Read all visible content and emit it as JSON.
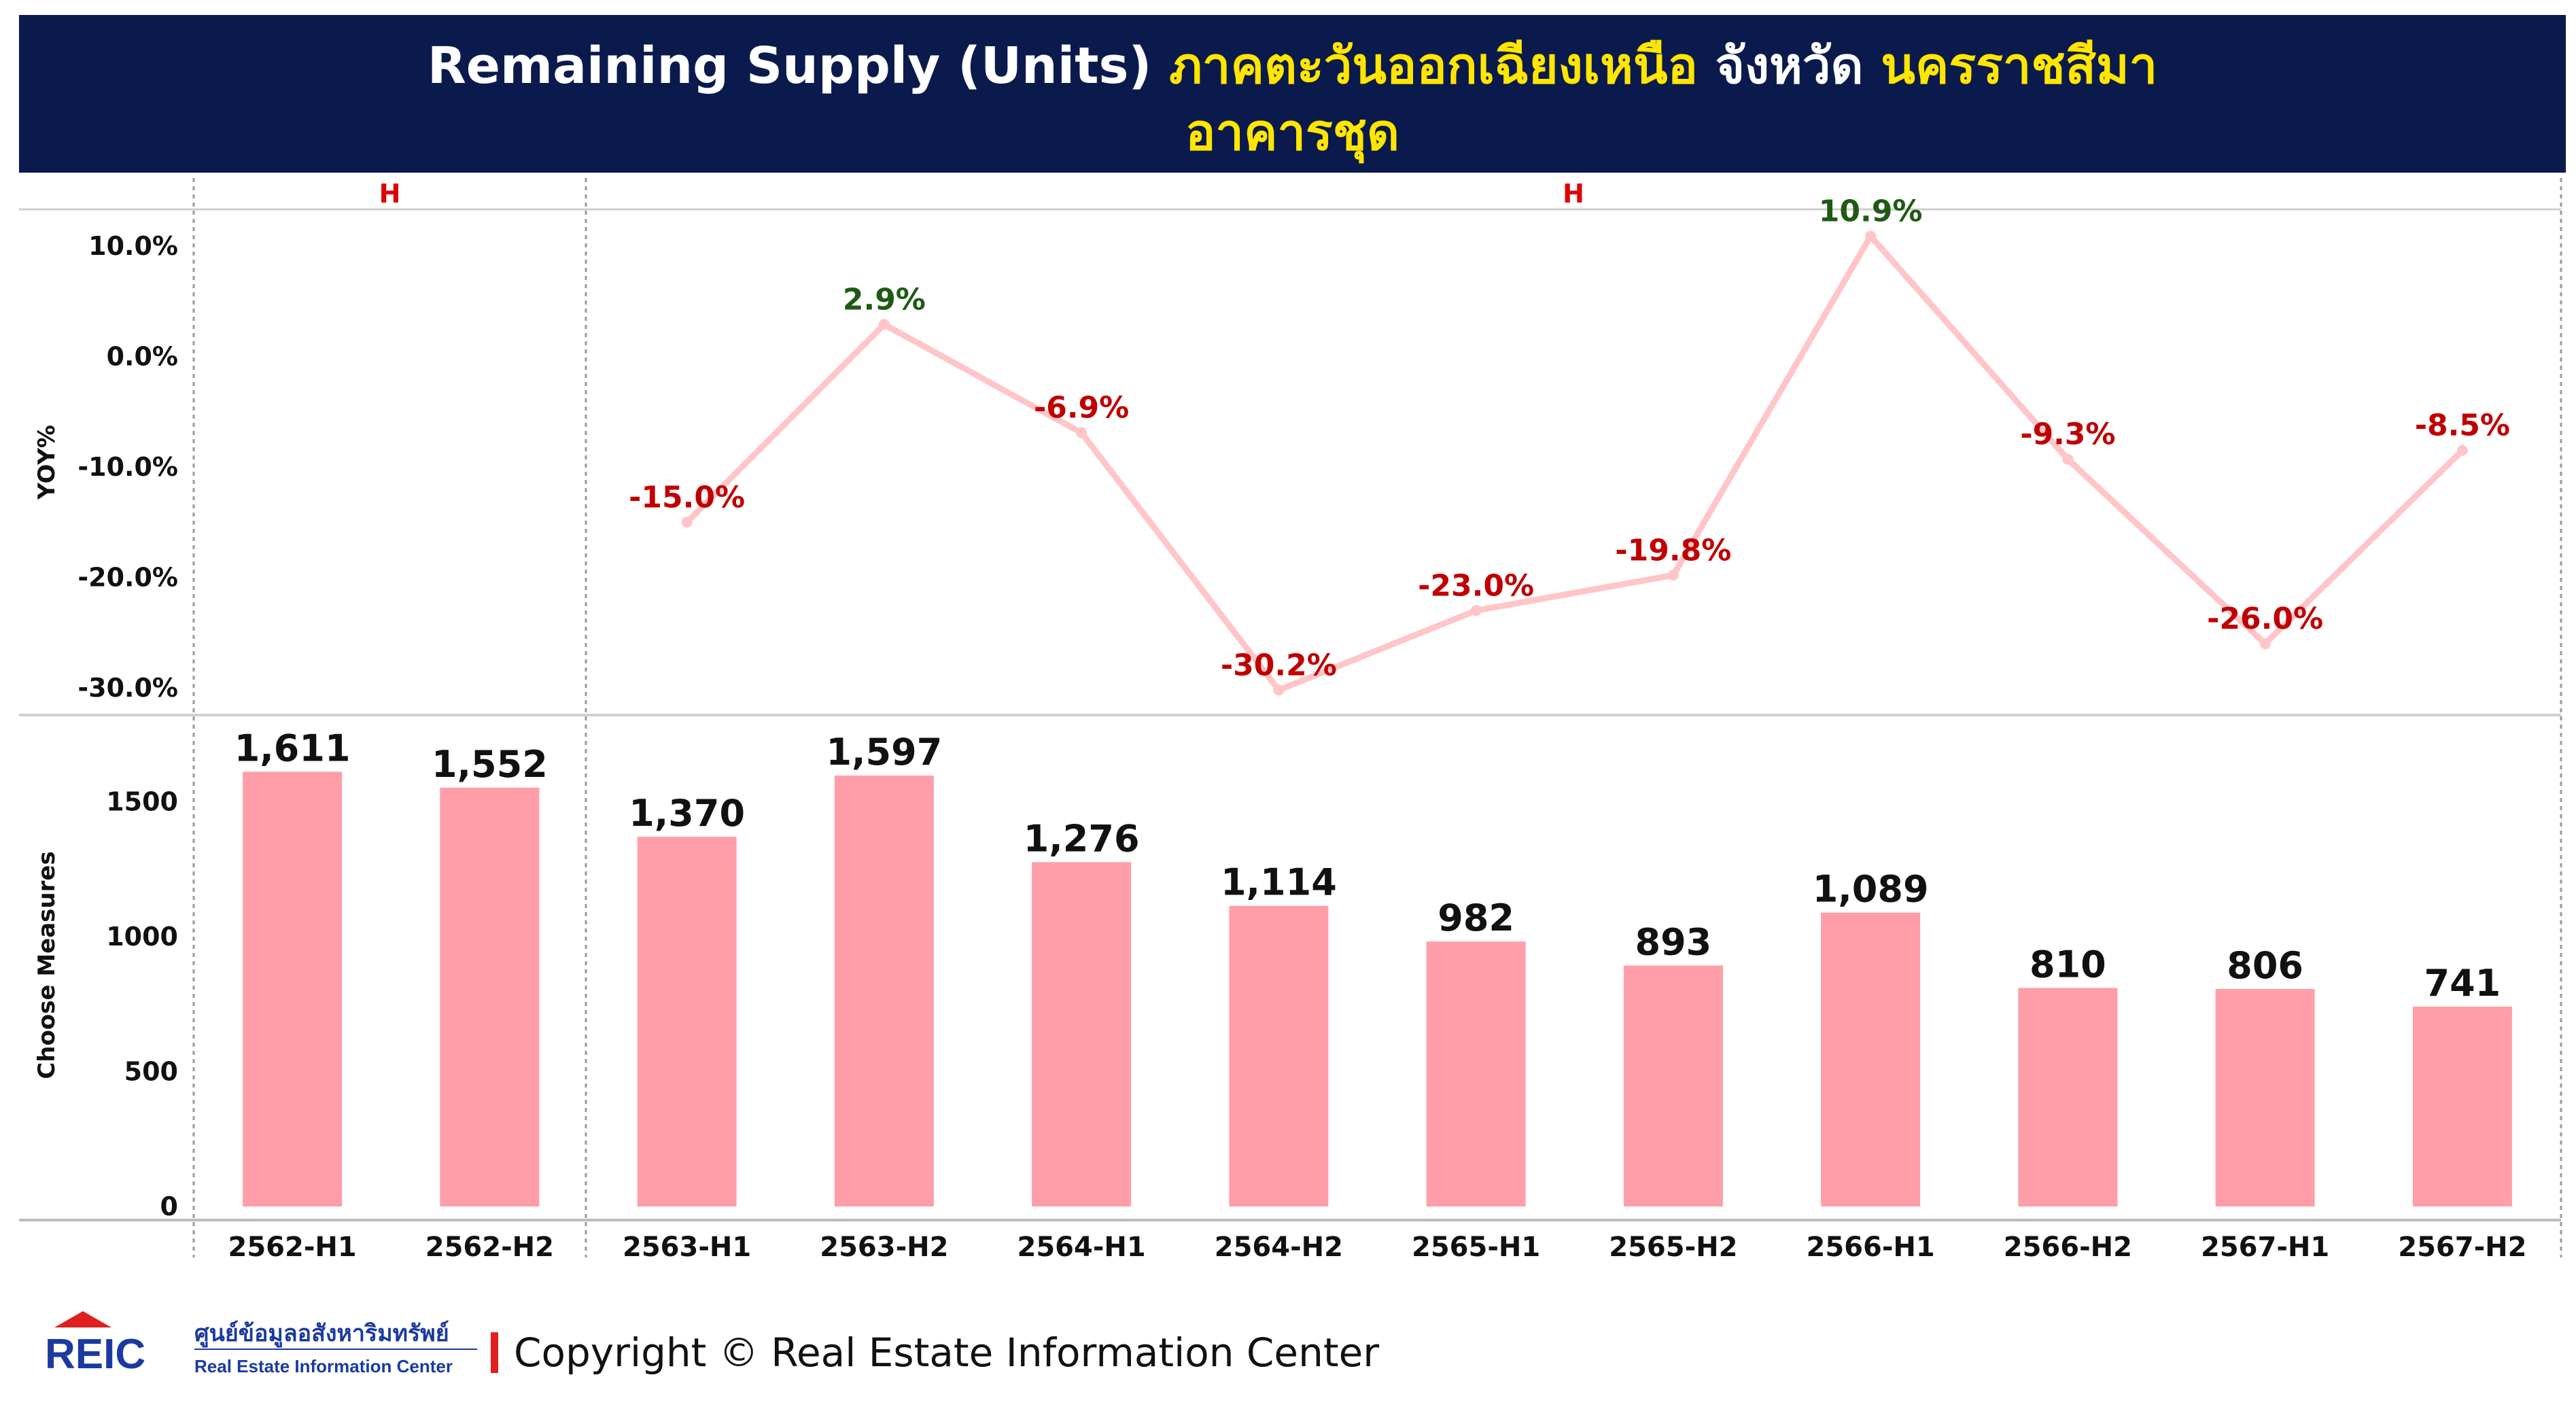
{
  "title": {
    "part1": "Remaining Supply (Units) ",
    "part2": "ภาคตะวันออกเฉียงเหนือ",
    "part3": " จังหวัด ",
    "part4": "นครราชสีมา",
    "line2": "อาคารชุด"
  },
  "colors": {
    "banner": "#0b1a4d",
    "title_highlight": "#ffe600",
    "bar": "#ff9ea8",
    "line": "#ffc5c8",
    "negative_label": "#c00000",
    "positive_label": "#1e5a14",
    "header_label": "#e00000"
  },
  "chart_data": [
    {
      "type": "line",
      "ylabel": "YOY%",
      "panel_headers": [
        "H",
        "H"
      ],
      "ylim": [
        -32,
        12
      ],
      "yticks": [
        10,
        0,
        -10,
        -20,
        -30
      ],
      "ytick_labels": [
        "10.0%",
        "0.0%",
        "-10.0%",
        "-20.0%",
        "-30.0%"
      ],
      "categories": [
        "2562-H1",
        "2562-H2",
        "2563-H1",
        "2563-H2",
        "2564-H1",
        "2564-H2",
        "2565-H1",
        "2565-H2",
        "2566-H1",
        "2566-H2",
        "2567-H1",
        "2567-H2"
      ],
      "values": [
        null,
        null,
        -15.0,
        2.9,
        -6.9,
        -30.2,
        -23.0,
        -19.8,
        10.9,
        -9.3,
        -26.0,
        -8.5
      ],
      "labels": [
        "",
        "",
        "-15.0%",
        "2.9%",
        "-6.9%",
        "-30.2%",
        "-23.0%",
        "-19.8%",
        "10.9%",
        "-9.3%",
        "-26.0%",
        "-8.5%"
      ]
    },
    {
      "type": "bar",
      "ylabel": "Choose Measures",
      "ylim": [
        0,
        1800
      ],
      "yticks": [
        0,
        500,
        1000,
        1500
      ],
      "ytick_labels": [
        "0",
        "500",
        "1000",
        "1500"
      ],
      "categories": [
        "2562-H1",
        "2562-H2",
        "2563-H1",
        "2563-H2",
        "2564-H1",
        "2564-H2",
        "2565-H1",
        "2565-H2",
        "2566-H1",
        "2566-H2",
        "2567-H1",
        "2567-H2"
      ],
      "values": [
        1611,
        1552,
        1370,
        1597,
        1276,
        1114,
        982,
        893,
        1089,
        810,
        806,
        741
      ],
      "labels": [
        "1,611",
        "1,552",
        "1,370",
        "1,597",
        "1,276",
        "1,114",
        "982",
        "893",
        "1,089",
        "810",
        "806",
        "741"
      ]
    }
  ],
  "footer": {
    "logo_text": "REIC",
    "logo_thai": "ศูนย์ข้อมูลอสังหาริมทรัพย์",
    "logo_english": "Real Estate Information Center",
    "copyright": "Copyright © Real Estate Information Center"
  }
}
